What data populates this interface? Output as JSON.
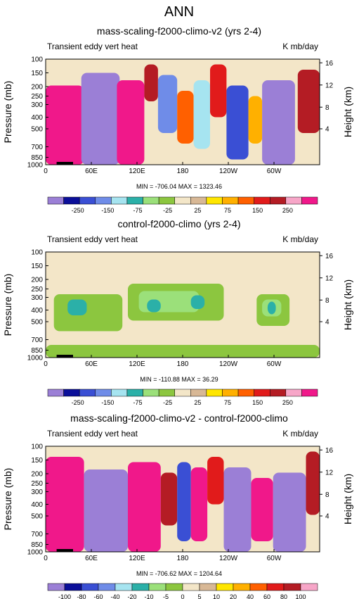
{
  "page_title": "ANN",
  "palette": [
    "#9b7fd6",
    "#0b0f99",
    "#3a4fd4",
    "#6f8ce8",
    "#a6e4f0",
    "#2bb0a8",
    "#9be07a",
    "#8cc63f",
    "#f3e6c8",
    "#d8b896",
    "#ffe600",
    "#ffb000",
    "#ff6000",
    "#e11b1b",
    "#b41c24",
    "#f7a6c8",
    "#f0188a"
  ],
  "chart_data": [
    {
      "type": "heatmap",
      "title": "mass-scaling-f2000-climo-v2 (yrs 2-4)",
      "left_label": "Transient eddy vert heat",
      "right_label": "K mb/day",
      "xlabel": "",
      "ylabel": "Pressure (mb)",
      "y2label": "Height (km)",
      "x_ticks": [
        "0",
        "60E",
        "120E",
        "180",
        "120W",
        "60W"
      ],
      "y_ticks": [
        "100",
        "150",
        "200",
        "250",
        "300",
        "400",
        "500",
        "700",
        "850",
        "1000"
      ],
      "y2_ticks": [
        "16",
        "12",
        "8",
        "4"
      ],
      "stats": "MIN = -706.04   MAX = 1323.46",
      "colorbar_labels": [
        "-250",
        "-150",
        "-75",
        "-25",
        "25",
        "75",
        "150",
        "250"
      ],
      "levels": [
        -250,
        -200,
        -150,
        -100,
        -75,
        -50,
        -25,
        -10,
        10,
        25,
        50,
        75,
        100,
        150,
        200,
        250
      ],
      "ylim": [
        1000,
        100
      ]
    },
    {
      "type": "heatmap",
      "title": "control-f2000-climo (yrs 2-4)",
      "left_label": "Transient eddy vert heat",
      "right_label": "K mb/day",
      "xlabel": "",
      "ylabel": "Pressure (mb)",
      "y2label": "Height (km)",
      "x_ticks": [
        "0",
        "60E",
        "120E",
        "180",
        "120W",
        "60W"
      ],
      "y_ticks": [
        "100",
        "150",
        "200",
        "250",
        "300",
        "400",
        "500",
        "700",
        "850",
        "1000"
      ],
      "y2_ticks": [
        "16",
        "12",
        "8",
        "4"
      ],
      "stats": "MIN = -110.88   MAX = 36.29",
      "colorbar_labels": [
        "-250",
        "-150",
        "-75",
        "-25",
        "25",
        "75",
        "150",
        "250"
      ],
      "levels": [
        -250,
        -200,
        -150,
        -100,
        -75,
        -50,
        -25,
        -10,
        10,
        25,
        50,
        75,
        100,
        150,
        200,
        250
      ],
      "ylim": [
        1000,
        100
      ]
    },
    {
      "type": "heatmap",
      "title": "mass-scaling-f2000-climo-v2 - control-f2000-climo",
      "left_label": "Transient eddy vert heat",
      "right_label": "K mb/day",
      "xlabel": "",
      "ylabel": "Pressure (mb)",
      "y2label": "Height (km)",
      "x_ticks": [
        "0",
        "60E",
        "120E",
        "180",
        "120W",
        "60W"
      ],
      "y_ticks": [
        "100",
        "150",
        "200",
        "250",
        "300",
        "400",
        "500",
        "700",
        "850",
        "1000"
      ],
      "y2_ticks": [
        "16",
        "12",
        "8",
        "4"
      ],
      "stats": "MIN = -706.62   MAX = 1204.64",
      "colorbar_labels": [
        "-100",
        "-80",
        "-60",
        "-40",
        "-20",
        "-10",
        "-5",
        "0",
        "5",
        "10",
        "20",
        "40",
        "60",
        "80",
        "100"
      ],
      "levels": [
        -100,
        -80,
        -60,
        -40,
        -20,
        -10,
        -5,
        0,
        5,
        10,
        20,
        40,
        60,
        80,
        100
      ],
      "ylim": [
        1000,
        100
      ]
    }
  ]
}
